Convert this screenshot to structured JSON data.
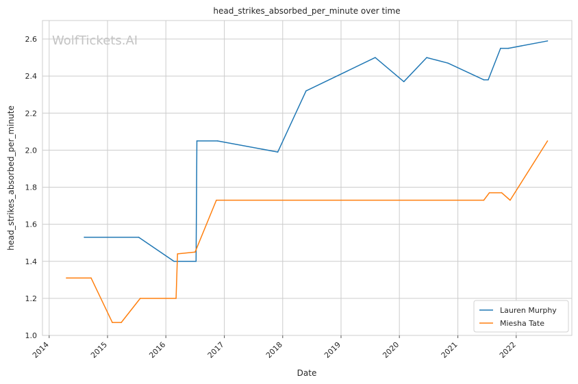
{
  "chart_data": {
    "type": "line",
    "title": "head_strikes_absorbed_per_minute over time",
    "xlabel": "Date",
    "ylabel": "head_strikes_absorbed_per_minute",
    "watermark": "WolfTickets.AI",
    "x_ticks": [
      "2014",
      "2015",
      "2016",
      "2017",
      "2018",
      "2019",
      "2020",
      "2021",
      "2022"
    ],
    "y_ticks": [
      "1.0",
      "1.2",
      "1.4",
      "1.6",
      "1.8",
      "2.0",
      "2.2",
      "2.4",
      "2.6"
    ],
    "xlim": [
      "2013-11-20",
      "2022-12-15"
    ],
    "ylim": [
      1.0,
      2.7
    ],
    "grid": true,
    "legend_position": "bottom-right",
    "series": [
      {
        "name": "Lauren Murphy",
        "color": "#1f77b4",
        "points": [
          [
            "2014-08-09",
            1.53
          ],
          [
            "2015-07-15",
            1.53
          ],
          [
            "2016-02-21",
            1.4
          ],
          [
            "2016-07-08",
            1.4
          ],
          [
            "2016-07-13",
            2.05
          ],
          [
            "2016-11-19",
            2.05
          ],
          [
            "2017-12-01",
            1.99
          ],
          [
            "2018-05-27",
            2.32
          ],
          [
            "2019-08-03",
            2.5
          ],
          [
            "2020-01-29",
            2.37
          ],
          [
            "2020-06-20",
            2.5
          ],
          [
            "2020-10-31",
            2.47
          ],
          [
            "2021-06-12",
            2.38
          ],
          [
            "2021-07-10",
            2.38
          ],
          [
            "2021-09-25",
            2.55
          ],
          [
            "2021-11-13",
            2.55
          ],
          [
            "2022-07-16",
            2.59
          ]
        ]
      },
      {
        "name": "Miesha Tate",
        "color": "#ff7f0e",
        "points": [
          [
            "2014-04-19",
            1.31
          ],
          [
            "2014-09-20",
            1.31
          ],
          [
            "2015-01-31",
            1.07
          ],
          [
            "2015-03-28",
            1.07
          ],
          [
            "2015-07-25",
            1.2
          ],
          [
            "2016-03-05",
            1.2
          ],
          [
            "2016-03-14",
            1.44
          ],
          [
            "2016-07-02",
            1.45
          ],
          [
            "2016-11-12",
            1.73
          ],
          [
            "2021-06-12",
            1.73
          ],
          [
            "2021-07-17",
            1.77
          ],
          [
            "2021-10-02",
            1.77
          ],
          [
            "2021-11-24",
            1.73
          ],
          [
            "2022-07-16",
            2.05
          ]
        ]
      }
    ]
  }
}
